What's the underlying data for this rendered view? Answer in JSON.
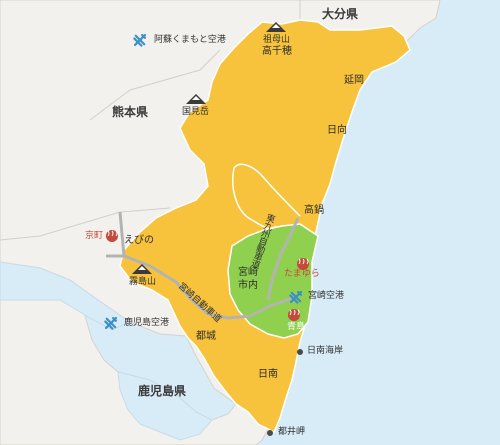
{
  "prefectures": {
    "oita": "大分県",
    "kumamoto": "熊本県",
    "kagoshima": "鹿児島県"
  },
  "airports": {
    "aso_kumamoto": "阿蘇くまもと空港",
    "kagoshima": "鹿児島空港",
    "miyazaki": "宮崎空港"
  },
  "mountains": {
    "sobo_label": "祖母山",
    "kunimi_label": "国見岳",
    "kirishima_label": "霧島山"
  },
  "cities": {
    "takachiho": "高千穂",
    "nobeoka": "延岡",
    "hyuga": "日向",
    "takanabe": "高鍋",
    "ebino": "えびの",
    "miyazaki_city": "宮崎",
    "miyazaki_city_2": "市内",
    "miyakonojo": "都城",
    "nichinan": "日南"
  },
  "onsen": {
    "kyomachi": "京町",
    "tamayura": "たまゆら",
    "aoshima": "青島"
  },
  "points": {
    "nichinan_coast": "日南海岸",
    "toi_cape": "都井岬"
  },
  "roads": {
    "miyazaki_expressway": "宮崎自動車道",
    "higashi_kyushu_expressway": "東九州自動車道"
  },
  "colors": {
    "sea": "#d8ecf8",
    "land": "#f3f1ee",
    "miyazaki": "#f7c33d",
    "central_area": "#8fd14f",
    "road": "#b3b3b3",
    "onsen": "#c44a3a"
  }
}
